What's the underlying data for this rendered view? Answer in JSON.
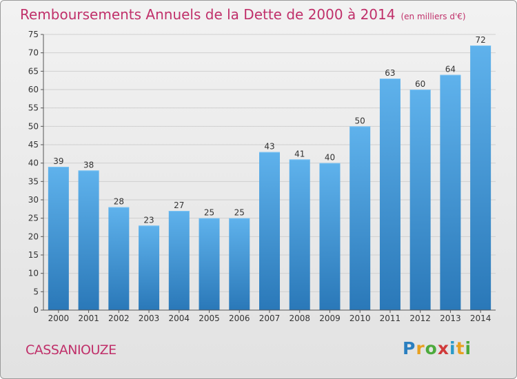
{
  "title": "Remboursements Annuels de la Dette de 2000 à 2014",
  "subtitle": "(en milliers d'€)",
  "commune": "CASSANIOUZE",
  "logo": {
    "text": "Proxiti",
    "letters": [
      {
        "char": "P",
        "color": "#2a7fc0"
      },
      {
        "char": "r",
        "color": "#e8a020"
      },
      {
        "char": "o",
        "color": "#4caa3c"
      },
      {
        "char": "x",
        "color": "#d03a3a"
      },
      {
        "char": "i",
        "color": "#2a9ac8"
      },
      {
        "char": "t",
        "color": "#e8a020"
      },
      {
        "char": "i",
        "color": "#4caa3c"
      }
    ]
  },
  "colors": {
    "title": "#c0306a",
    "bar_top": "#5fb2ec",
    "bar_bottom": "#2a78b8",
    "grid": "#cfcfcf"
  },
  "chart_data": {
    "type": "bar",
    "title": "Remboursements Annuels de la Dette de 2000 à 2014",
    "units": "en milliers d'€",
    "xlabel": "",
    "ylabel": "",
    "ylim": [
      0,
      75
    ],
    "yticks": [
      0,
      5,
      10,
      15,
      20,
      25,
      30,
      35,
      40,
      45,
      50,
      55,
      60,
      65,
      70,
      75
    ],
    "grid": true,
    "categories": [
      "2000",
      "2001",
      "2002",
      "2003",
      "2004",
      "2005",
      "2006",
      "2007",
      "2008",
      "2009",
      "2010",
      "2011",
      "2012",
      "2013",
      "2014"
    ],
    "values": [
      39,
      38,
      28,
      23,
      27,
      25,
      25,
      43,
      41,
      40,
      50,
      63,
      60,
      64,
      72
    ]
  }
}
